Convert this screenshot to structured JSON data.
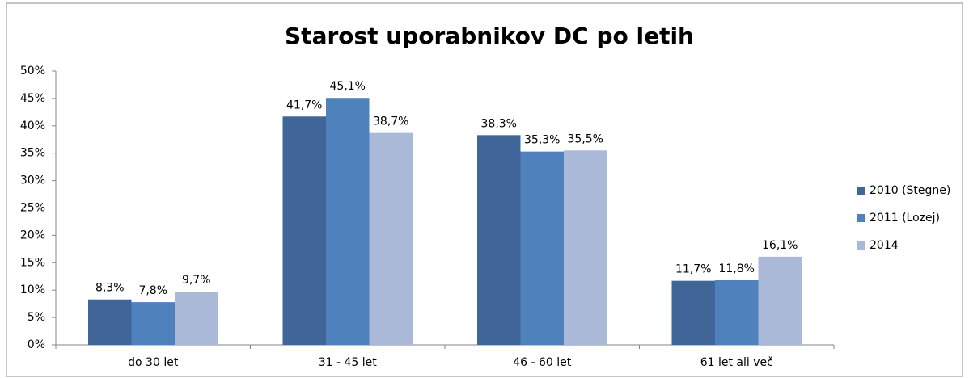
{
  "chart_data": {
    "type": "bar",
    "title": "Starost uporabnikov DC po letih",
    "categories": [
      "do 30 let",
      "31 - 45 let",
      "46 - 60 let",
      "61 let ali več"
    ],
    "series": [
      {
        "name": "2010 (Stegne)",
        "color": "#3f6599",
        "values": [
          8.3,
          41.7,
          38.3,
          11.7
        ],
        "value_labels": [
          "8,3%",
          "41,7%",
          "38,3%",
          "11,7%"
        ]
      },
      {
        "name": "2011 (Lozej)",
        "color": "#4f81bd",
        "values": [
          7.8,
          45.1,
          35.3,
          11.8
        ],
        "value_labels": [
          "7,8%",
          "45,1%",
          "35,3%",
          "11,8%"
        ]
      },
      {
        "name": "2014",
        "color": "#aab9d8",
        "values": [
          9.7,
          38.7,
          35.5,
          16.1
        ],
        "value_labels": [
          "9,7%",
          "38,7%",
          "35,5%",
          "16,1%"
        ]
      }
    ],
    "ylim": [
      0,
      50
    ],
    "yticks": [
      {
        "value": 0,
        "label": "0%"
      },
      {
        "value": 5,
        "label": "5%"
      },
      {
        "value": 10,
        "label": "10%"
      },
      {
        "value": 15,
        "label": "15%"
      },
      {
        "value": 20,
        "label": "20%"
      },
      {
        "value": 25,
        "label": "25%"
      },
      {
        "value": 30,
        "label": "30%"
      },
      {
        "value": 35,
        "label": "35%"
      },
      {
        "value": 40,
        "label": "40%"
      },
      {
        "value": 45,
        "label": "45%"
      },
      {
        "value": 50,
        "label": "50%"
      }
    ],
    "grid": false,
    "legend": "right"
  }
}
